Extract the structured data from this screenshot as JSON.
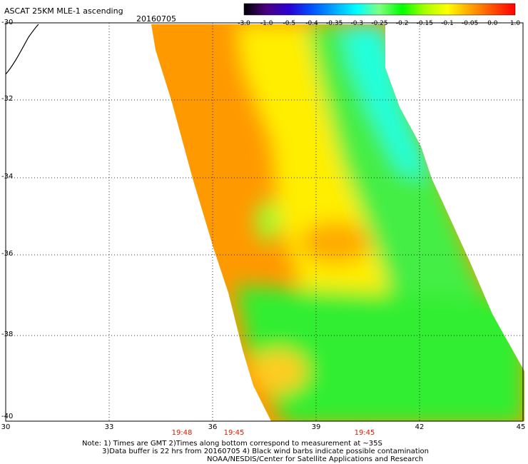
{
  "header": {
    "title": "ASCAT 25KM MLE-1 ascending",
    "date": "20160705"
  },
  "colorbar": {
    "ticks": [
      "-3.0",
      "-1.0",
      "-0.5",
      "-0.4",
      "-0.35",
      "-0.3",
      "-0.25",
      "-0.2",
      "-0.15",
      "-0.1",
      "-0.05",
      "0.0",
      "1.0"
    ],
    "colors": [
      "#000000",
      "#4b0082",
      "#2a00d5",
      "#0050ff",
      "#00a8ff",
      "#00ffff",
      "#80ff80",
      "#00ff00",
      "#a8ff00",
      "#ffff00",
      "#ffa500",
      "#ff5000",
      "#ff0000"
    ]
  },
  "map": {
    "lat_labels": [
      "-30",
      "-32",
      "-34",
      "-36",
      "-38",
      "-40"
    ],
    "lon_labels": [
      "30",
      "33",
      "36",
      "39",
      "42",
      "45"
    ],
    "time_labels": [
      "19:48",
      "19:45",
      "19:45"
    ],
    "swath_colors": {
      "orange": "#ff9900",
      "yellow": "#ffee00",
      "green": "#33ee33",
      "cyan": "#22ffdd",
      "light_green": "#99ff33"
    }
  },
  "notes": {
    "line1": "Note: 1) Times are GMT 2)Times along bottom correspond to measurement at ~35S",
    "line2": "3)Data buffer is 22 hrs from 20160705 4) Black wind barbs indicate possible contamination",
    "line3": "NOAA/NESDIS/Center for Satellite Applications and Research"
  }
}
